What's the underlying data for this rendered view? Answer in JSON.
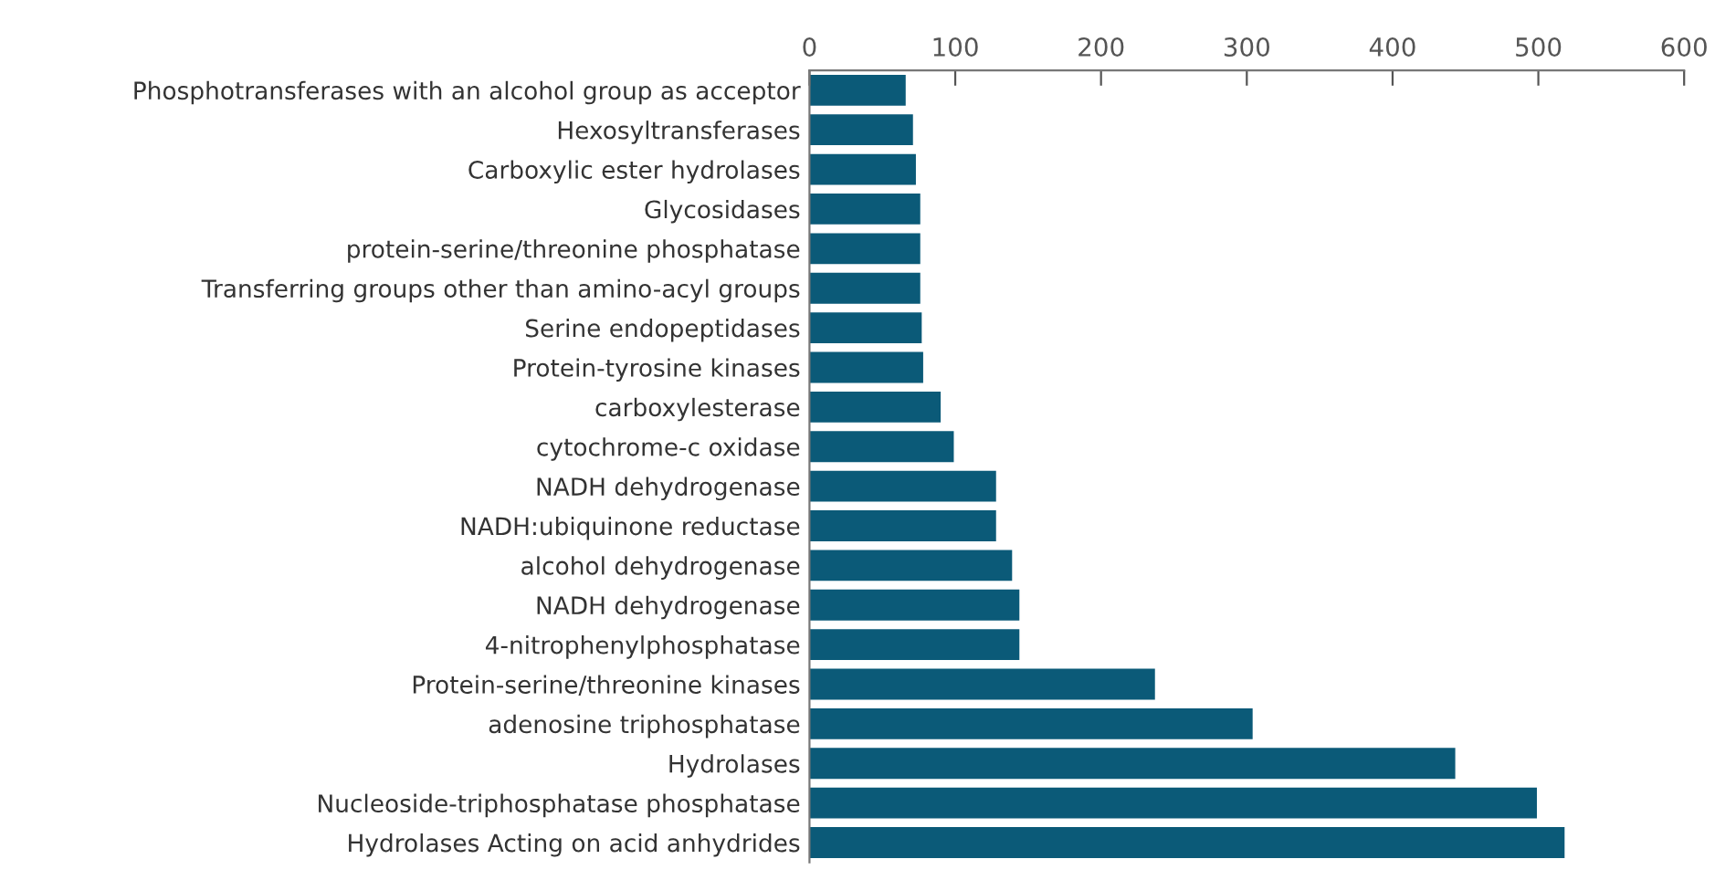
{
  "chart_data": {
    "type": "bar",
    "orientation": "horizontal",
    "categories": [
      "Phosphotransferases with an alcohol group as acceptor",
      "Hexosyltransferases",
      "Carboxylic ester hydrolases",
      "Glycosidases",
      "protein-serine/threonine phosphatase",
      "Transferring groups other than amino-acyl groups",
      "Serine endopeptidases",
      "Protein-tyrosine kinases",
      "carboxylesterase",
      "cytochrome-c oxidase",
      "NADH dehydrogenase",
      "NADH:ubiquinone reductase",
      "alcohol dehydrogenase",
      "NADH dehydrogenase",
      "4-nitrophenylphosphatase",
      "Protein-serine/threonine kinases",
      "adenosine triphosphatase",
      "Hydrolases",
      "Nucleoside-triphosphatase phosphatase",
      "Hydrolases Acting on acid anhydrides"
    ],
    "values": [
      66,
      71,
      73,
      76,
      76,
      76,
      77,
      78,
      90,
      99,
      128,
      128,
      139,
      144,
      144,
      237,
      304,
      443,
      499,
      518
    ],
    "color": "#0b5a78",
    "xlim": [
      0,
      600
    ],
    "xticks": [
      0,
      100,
      200,
      300,
      400,
      500,
      600
    ],
    "grid": false
  }
}
